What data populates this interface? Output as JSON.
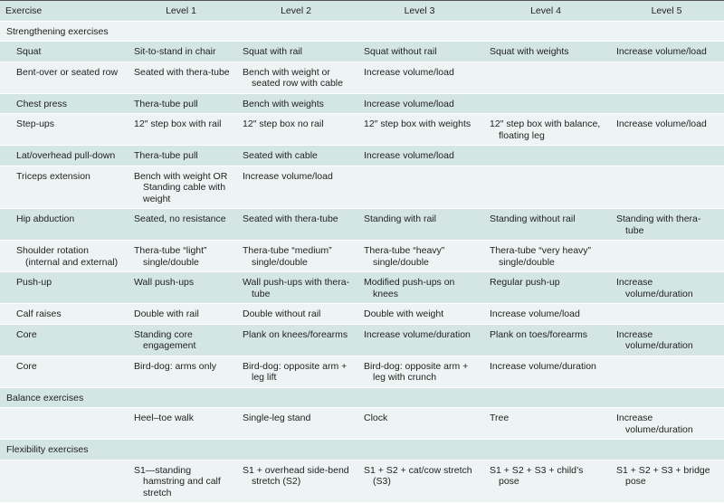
{
  "colors": {
    "header_row": "#d4e6e3",
    "alt_row": "#edf4f3",
    "rule": "#555555"
  },
  "headers": [
    "Exercise",
    "Level 1",
    "Level 2",
    "Level 3",
    "Level 4",
    "Level 5"
  ],
  "rows": [
    {
      "type": "section",
      "label": "Strengthening exercises"
    },
    {
      "type": "data",
      "cells": [
        "Squat",
        "Sit-to-stand in chair",
        "Squat with rail",
        "Squat without rail",
        "Squat with weights",
        "Increase volume/load"
      ]
    },
    {
      "type": "data",
      "cells": [
        "Bent-over or seated row",
        "Seated with thera-tube",
        "Bench with weight or seated row with cable",
        "Increase volume/load",
        "",
        ""
      ]
    },
    {
      "type": "data",
      "cells": [
        "Chest press",
        "Thera-tube pull",
        "Bench with weights",
        "Increase volume/load",
        "",
        ""
      ]
    },
    {
      "type": "data",
      "cells": [
        "Step-ups",
        "12″ step box with rail",
        "12″ step box no rail",
        "12″ step box with weights",
        "12″ step box with balance, floating leg",
        "Increase volume/load"
      ]
    },
    {
      "type": "data",
      "cells": [
        "Lat/overhead pull-down",
        "Thera-tube pull",
        "Seated with cable",
        "Increase volume/load",
        "",
        ""
      ]
    },
    {
      "type": "data",
      "cells": [
        "Triceps extension",
        "Bench with weight OR Standing cable with weight",
        "Increase volume/load",
        "",
        "",
        ""
      ]
    },
    {
      "type": "data",
      "cells": [
        "Hip abduction",
        "Seated, no resistance",
        "Seated with thera-tube",
        "Standing with rail",
        "Standing without rail",
        "Standing with thera-tube"
      ]
    },
    {
      "type": "data",
      "cells": [
        "Shoulder rotation (internal and external)",
        "Thera-tube “light” single/double",
        "Thera-tube “medium” single/double",
        "Thera-tube “heavy” single/double",
        "Thera-tube “very heavy” single/double",
        ""
      ]
    },
    {
      "type": "data",
      "cells": [
        "Push-up",
        "Wall push-ups",
        "Wall push-ups with thera-tube",
        "Modified push-ups on knees",
        "Regular push-up",
        "Increase volume/duration"
      ]
    },
    {
      "type": "data",
      "cells": [
        "Calf raises",
        "Double with rail",
        "Double without rail",
        "Double with weight",
        "Increase volume/load",
        ""
      ]
    },
    {
      "type": "data",
      "cells": [
        "Core",
        "Standing core engagement",
        "Plank on knees/forearms",
        "Increase volume/duration",
        "Plank on toes/forearms",
        "Increase volume/duration"
      ]
    },
    {
      "type": "data",
      "cells": [
        "Core",
        "Bird-dog: arms only",
        "Bird-dog: opposite arm + leg lift",
        "Bird-dog: opposite arm + leg with crunch",
        "Increase volume/duration",
        ""
      ]
    },
    {
      "type": "section",
      "label": "Balance exercises"
    },
    {
      "type": "data",
      "cells": [
        "",
        "Heel–toe walk",
        "Single-leg stand",
        "Clock",
        "Tree",
        "Increase volume/duration"
      ]
    },
    {
      "type": "section",
      "label": "Flexibility exercises"
    },
    {
      "type": "data",
      "cells": [
        "",
        "S1—standing hamstring and calf stretch",
        "S1 + overhead side-bend stretch (S2)",
        "S1 + S2 + cat/cow stretch (S3)",
        "S1 + S2 + S3 + child’s pose",
        "S1 + S2 + S3 + bridge pose"
      ]
    }
  ]
}
